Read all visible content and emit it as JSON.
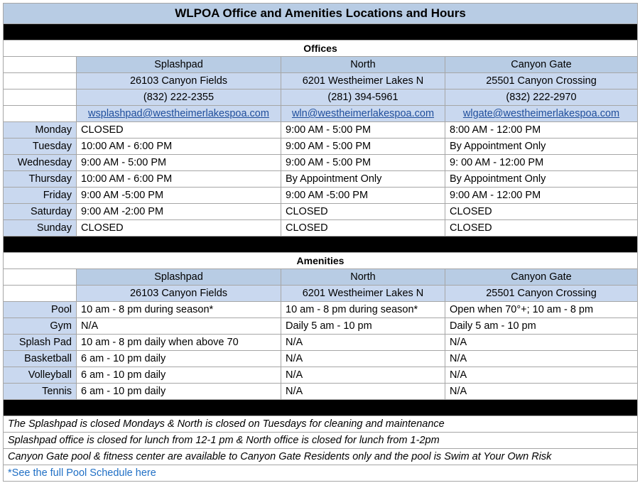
{
  "title": "WLPOA Office and Amenities Locations and Hours",
  "offices": {
    "heading": "Offices",
    "locations": [
      {
        "name": "Splashpad",
        "address": "26103 Canyon Fields",
        "phone": "(832) 222-2355",
        "email": "wsplashpad@westheimerlakespoa.com"
      },
      {
        "name": "North",
        "address": "6201 Westheimer Lakes N",
        "phone": "(281) 394-5961",
        "email": "wln@westheimerlakespoa.com"
      },
      {
        "name": "Canyon Gate",
        "address": "25501 Canyon Crossing",
        "phone": "(832) 222-2970",
        "email": "wlgate@westheimerlakespoa.com"
      }
    ],
    "hours": [
      {
        "day": "Monday",
        "times": [
          "CLOSED",
          "9:00 AM - 5:00 PM",
          "8:00 AM - 12:00 PM"
        ]
      },
      {
        "day": "Tuesday",
        "times": [
          "10:00 AM - 6:00 PM",
          "9:00 AM - 5:00 PM",
          "By Appointment Only"
        ]
      },
      {
        "day": "Wednesday",
        "times": [
          "9:00 AM - 5:00 PM",
          "9:00 AM - 5:00 PM",
          "9: 00 AM - 12:00 PM"
        ]
      },
      {
        "day": "Thursday",
        "times": [
          "10:00 AM - 6:00 PM",
          "By Appointment Only",
          "By Appointment Only"
        ]
      },
      {
        "day": "Friday",
        "times": [
          "9:00 AM -5:00 PM",
          "9:00 AM -5:00 PM",
          "9:00 AM - 12:00 PM"
        ]
      },
      {
        "day": "Saturday",
        "times": [
          "9:00 AM -2:00 PM",
          "CLOSED",
          "CLOSED"
        ]
      },
      {
        "day": "Sunday",
        "times": [
          "CLOSED",
          "CLOSED",
          "CLOSED"
        ]
      }
    ]
  },
  "amenities": {
    "heading": "Amenities",
    "locations": [
      {
        "name": "Splashpad",
        "address": "26103 Canyon Fields"
      },
      {
        "name": "North",
        "address": "6201 Westheimer Lakes N"
      },
      {
        "name": "Canyon Gate",
        "address": "25501 Canyon Crossing"
      }
    ],
    "rows": [
      {
        "amenity": "Pool",
        "times": [
          "10 am - 8 pm during season*",
          "10 am - 8 pm during season*",
          "Open when 70°+; 10 am - 8 pm"
        ]
      },
      {
        "amenity": "Gym",
        "times": [
          "N/A",
          "Daily 5 am - 10 pm",
          "Daily 5 am - 10 pm"
        ]
      },
      {
        "amenity": "Splash Pad",
        "times": [
          "10 am - 8 pm daily when above 70",
          "N/A",
          "N/A"
        ]
      },
      {
        "amenity": "Basketball",
        "times": [
          "6 am - 10 pm daily",
          "N/A",
          "N/A"
        ]
      },
      {
        "amenity": "Volleyball",
        "times": [
          "6 am - 10 pm daily",
          "N/A",
          "N/A"
        ]
      },
      {
        "amenity": "Tennis",
        "times": [
          "6 am - 10 pm daily",
          "N/A",
          "N/A"
        ]
      }
    ]
  },
  "notes": [
    "The Splashpad is closed Mondays & North is closed on Tuesdays for cleaning and maintenance",
    "Splashpad office is closed for lunch from 12-1 pm & North office is closed for lunch from 1-2pm",
    "Canyon Gate pool & fitness center are available to Canyon Gate Residents only and the pool is Swim at Your Own Risk"
  ],
  "link": "*See the full Pool Schedule here"
}
